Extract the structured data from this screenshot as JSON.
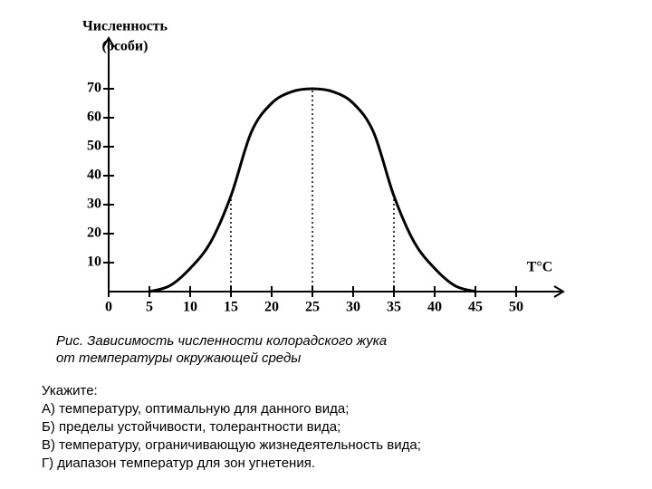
{
  "chart_data": {
    "type": "line",
    "y_label": [
      "Численность",
      "(особи)"
    ],
    "x_label": "T°C",
    "x": [
      5,
      7.5,
      10,
      12.5,
      15,
      17.5,
      20,
      22.5,
      25,
      27.5,
      30,
      32.5,
      35,
      37.5,
      40,
      42.5,
      45
    ],
    "values": [
      0,
      2,
      8,
      17,
      33,
      55,
      65,
      69,
      70,
      69,
      65,
      55,
      33,
      17,
      8,
      2,
      0
    ],
    "color": "#000000",
    "dotted_verticals": [
      15,
      25,
      35
    ],
    "xlim": [
      0,
      55
    ],
    "xticks": [
      0,
      5,
      10,
      15,
      20,
      25,
      30,
      35,
      40,
      45,
      50
    ],
    "ylim": [
      0,
      85
    ],
    "yticks": [
      10,
      20,
      30,
      40,
      50,
      60,
      70
    ]
  },
  "caption": [
    "Рис. Зависимость численности колорадского жука",
    "от температуры окружающей среды"
  ],
  "task": {
    "title": "Укажите:",
    "items": [
      "А) температуру, оптимальную для данного вида;",
      "Б) пределы устойчивости, толерантности вида;",
      "В) температуру, ограничивающую жизнедеятельность вида;",
      "Г) диапазон температур для зон угнетения."
    ]
  }
}
